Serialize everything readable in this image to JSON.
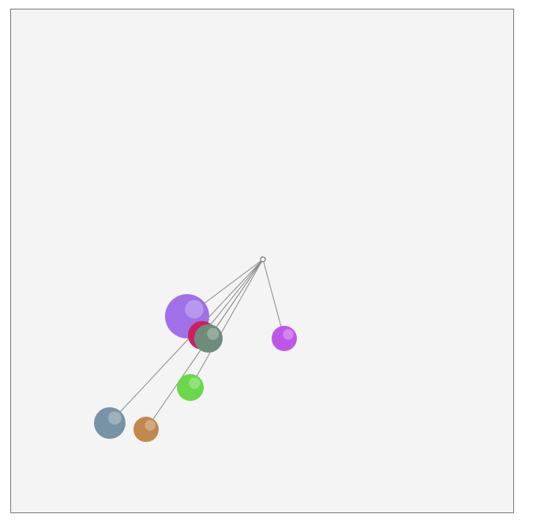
{
  "scene": {
    "background": "#f4f4f4",
    "border_color": "#7a7a7a",
    "string_color": "#8a8a8a",
    "pivot_color": "#888888"
  },
  "balls": [
    {
      "name": "purple-large-ball",
      "color": "#a070e8"
    },
    {
      "name": "crimson-ball",
      "color": "#cc1f62"
    },
    {
      "name": "sage-green-ball",
      "color": "#6e8c7c"
    },
    {
      "name": "magenta-ball",
      "color": "#c056e8"
    },
    {
      "name": "lime-green-ball",
      "color": "#6ad84a"
    },
    {
      "name": "steel-blue-ball",
      "color": "#7893a6"
    },
    {
      "name": "bronze-ball",
      "color": "#c08a4e"
    }
  ]
}
